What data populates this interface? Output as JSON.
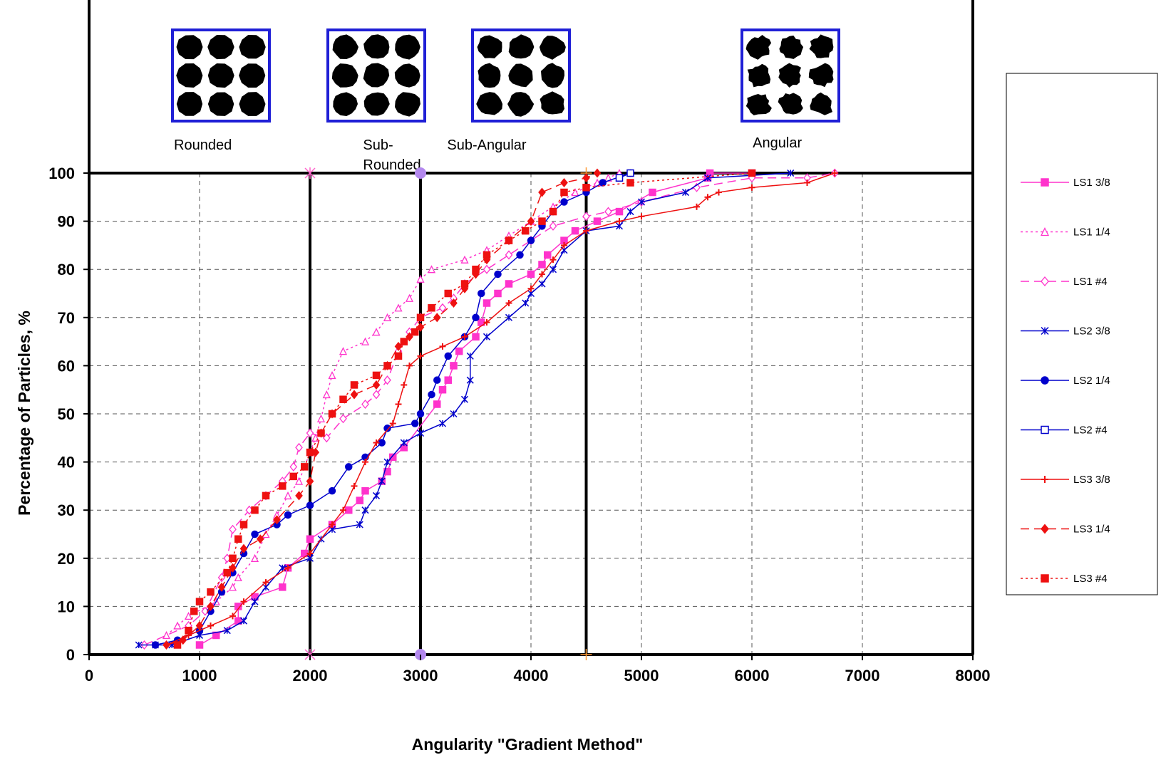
{
  "chart_data": {
    "type": "line",
    "xlabel": "Angularity \"Gradient Method\"",
    "ylabel": "Percentage of Particles, %",
    "xlim": [
      0,
      8000
    ],
    "ylim": [
      0,
      100
    ],
    "x_ticks": [
      "0",
      "1000",
      "2000",
      "3000",
      "4000",
      "5000",
      "6000",
      "7000",
      "8000"
    ],
    "y_ticks": [
      "0",
      "10",
      "20",
      "30",
      "40",
      "50",
      "60",
      "70",
      "80",
      "90",
      "100"
    ],
    "grid": true,
    "legend_position": "right",
    "class_boundaries": [
      2000,
      3000,
      4500
    ],
    "class_labels": [
      {
        "text": "Rounded",
        "x": 1030
      },
      {
        "text": "Sub-\nRounded",
        "x": 2480
      },
      {
        "text": "Sub-Angular",
        "x": 3600
      },
      {
        "text": "Angular",
        "x": 6230
      }
    ],
    "series": [
      {
        "name": "LS1 3/8",
        "color": "#ff33cc",
        "dash": "",
        "marker": "square",
        "markerFill": "#ff33cc",
        "points": [
          [
            1000,
            2
          ],
          [
            1150,
            4
          ],
          [
            1350,
            7
          ],
          [
            1350,
            10
          ],
          [
            1500,
            12
          ],
          [
            1750,
            14
          ],
          [
            1800,
            18
          ],
          [
            1950,
            21
          ],
          [
            2000,
            24
          ],
          [
            2200,
            27
          ],
          [
            2350,
            30
          ],
          [
            2450,
            32
          ],
          [
            2500,
            34
          ],
          [
            2650,
            36
          ],
          [
            2700,
            38
          ],
          [
            2750,
            41
          ],
          [
            2850,
            43
          ],
          [
            3150,
            52
          ],
          [
            3200,
            55
          ],
          [
            3250,
            57
          ],
          [
            3300,
            60
          ],
          [
            3350,
            63
          ],
          [
            3500,
            66
          ],
          [
            3550,
            69
          ],
          [
            3600,
            73
          ],
          [
            3700,
            75
          ],
          [
            3800,
            77
          ],
          [
            4000,
            79
          ],
          [
            4100,
            81
          ],
          [
            4150,
            83
          ],
          [
            4300,
            86
          ],
          [
            4400,
            88
          ],
          [
            4600,
            90
          ],
          [
            4800,
            92
          ],
          [
            5100,
            96
          ],
          [
            5600,
            99
          ],
          [
            5620,
            100
          ],
          [
            6000,
            100
          ]
        ]
      },
      {
        "name": "LS1 1/4",
        "color": "#ff33cc",
        "dash": "3,4",
        "marker": "triangle",
        "markerFill": "#ffffff",
        "points": [
          [
            700,
            4
          ],
          [
            800,
            6
          ],
          [
            900,
            8
          ],
          [
            1150,
            11
          ],
          [
            1300,
            14
          ],
          [
            1350,
            16
          ],
          [
            1500,
            20
          ],
          [
            1600,
            25
          ],
          [
            1700,
            29
          ],
          [
            1800,
            33
          ],
          [
            1900,
            36
          ],
          [
            2000,
            42
          ],
          [
            2050,
            45
          ],
          [
            2100,
            49
          ],
          [
            2150,
            54
          ],
          [
            2200,
            58
          ],
          [
            2300,
            63
          ],
          [
            2500,
            65
          ],
          [
            2600,
            67
          ],
          [
            2700,
            70
          ],
          [
            2800,
            72
          ],
          [
            2900,
            74
          ],
          [
            3000,
            78
          ],
          [
            3100,
            80
          ],
          [
            3400,
            82
          ],
          [
            3600,
            84
          ],
          [
            3800,
            87
          ],
          [
            4000,
            90
          ],
          [
            4200,
            93
          ],
          [
            4400,
            96
          ],
          [
            4600,
            98
          ],
          [
            4700,
            99
          ],
          [
            4800,
            100
          ]
        ]
      },
      {
        "name": "LS1 #4",
        "color": "#ff33cc",
        "dash": "12,7",
        "marker": "diamond",
        "markerFill": "#ffffff",
        "points": [
          [
            500,
            2
          ],
          [
            900,
            6
          ],
          [
            1050,
            9
          ],
          [
            1200,
            16
          ],
          [
            1250,
            20
          ],
          [
            1300,
            26
          ],
          [
            1450,
            30
          ],
          [
            1600,
            33
          ],
          [
            1750,
            36
          ],
          [
            1850,
            39
          ],
          [
            1900,
            43
          ],
          [
            2000,
            46
          ],
          [
            2150,
            45
          ],
          [
            2300,
            49
          ],
          [
            2500,
            52
          ],
          [
            2600,
            54
          ],
          [
            2700,
            57
          ],
          [
            2800,
            63
          ],
          [
            2900,
            67
          ],
          [
            3000,
            70
          ],
          [
            3200,
            72
          ],
          [
            3300,
            74
          ],
          [
            3400,
            77
          ],
          [
            3600,
            80
          ],
          [
            3800,
            83
          ],
          [
            4000,
            86
          ],
          [
            4200,
            89
          ],
          [
            4500,
            91
          ],
          [
            4700,
            92
          ],
          [
            5000,
            94
          ],
          [
            5500,
            97
          ],
          [
            6000,
            99
          ],
          [
            6500,
            99
          ],
          [
            6750,
            100
          ]
        ]
      },
      {
        "name": "LS2 3/8",
        "color": "#0000cc",
        "dash": "",
        "marker": "star",
        "markerFill": "#0000cc",
        "points": [
          [
            450,
            2
          ],
          [
            600,
            2
          ],
          [
            750,
            2
          ],
          [
            1000,
            4
          ],
          [
            1250,
            5
          ],
          [
            1400,
            7
          ],
          [
            1500,
            11
          ],
          [
            1600,
            14
          ],
          [
            1750,
            18
          ],
          [
            2000,
            20
          ],
          [
            2100,
            24
          ],
          [
            2200,
            26
          ],
          [
            2450,
            27
          ],
          [
            2500,
            30
          ],
          [
            2600,
            33
          ],
          [
            2650,
            36
          ],
          [
            2700,
            40
          ],
          [
            2850,
            44
          ],
          [
            3000,
            46
          ],
          [
            3200,
            48
          ],
          [
            3300,
            50
          ],
          [
            3400,
            53
          ],
          [
            3450,
            57
          ],
          [
            3450,
            62
          ],
          [
            3600,
            66
          ],
          [
            3800,
            70
          ],
          [
            3950,
            73
          ],
          [
            4000,
            75
          ],
          [
            4100,
            77
          ],
          [
            4200,
            80
          ],
          [
            4300,
            84
          ],
          [
            4500,
            88
          ],
          [
            4800,
            89
          ],
          [
            4900,
            92
          ],
          [
            5000,
            94
          ],
          [
            5400,
            96
          ],
          [
            5600,
            99
          ],
          [
            6350,
            100
          ]
        ]
      },
      {
        "name": "LS2 1/4",
        "color": "#0000cc",
        "dash": "",
        "marker": "circle",
        "markerFill": "#0000cc",
        "points": [
          [
            600,
            2
          ],
          [
            800,
            3
          ],
          [
            1000,
            5
          ],
          [
            1100,
            9
          ],
          [
            1200,
            13
          ],
          [
            1300,
            17
          ],
          [
            1400,
            21
          ],
          [
            1500,
            25
          ],
          [
            1700,
            27
          ],
          [
            1800,
            29
          ],
          [
            2000,
            31
          ],
          [
            2200,
            34
          ],
          [
            2350,
            39
          ],
          [
            2500,
            41
          ],
          [
            2650,
            44
          ],
          [
            2700,
            47
          ],
          [
            2950,
            48
          ],
          [
            3000,
            50
          ],
          [
            3100,
            54
          ],
          [
            3150,
            57
          ],
          [
            3250,
            62
          ],
          [
            3400,
            66
          ],
          [
            3500,
            70
          ],
          [
            3550,
            75
          ],
          [
            3700,
            79
          ],
          [
            3900,
            83
          ],
          [
            4000,
            86
          ],
          [
            4100,
            89
          ],
          [
            4200,
            92
          ],
          [
            4300,
            94
          ],
          [
            4500,
            96
          ],
          [
            4650,
            98
          ],
          [
            4900,
            100
          ]
        ]
      },
      {
        "name": "LS2 #4",
        "color": "#0000cc",
        "dash": "",
        "marker": "square",
        "markerFill": "#ffffff",
        "points": [
          [
            4800,
            99
          ],
          [
            4900,
            100
          ]
        ]
      },
      {
        "name": "LS3 3/8",
        "color": "#ee1111",
        "dash": "",
        "marker": "plus",
        "markerFill": "#ee1111",
        "points": [
          [
            700,
            2
          ],
          [
            900,
            4
          ],
          [
            1100,
            6
          ],
          [
            1300,
            8
          ],
          [
            1400,
            11
          ],
          [
            1600,
            15
          ],
          [
            1800,
            18
          ],
          [
            2000,
            21
          ],
          [
            2200,
            27
          ],
          [
            2300,
            30
          ],
          [
            2400,
            35
          ],
          [
            2500,
            40
          ],
          [
            2600,
            44
          ],
          [
            2750,
            48
          ],
          [
            2800,
            52
          ],
          [
            2850,
            56
          ],
          [
            2900,
            60
          ],
          [
            3000,
            62
          ],
          [
            3200,
            64
          ],
          [
            3400,
            66
          ],
          [
            3600,
            69
          ],
          [
            3800,
            73
          ],
          [
            4000,
            76
          ],
          [
            4100,
            79
          ],
          [
            4200,
            82
          ],
          [
            4300,
            85
          ],
          [
            4500,
            88
          ],
          [
            4800,
            90
          ],
          [
            5000,
            91
          ],
          [
            5500,
            93
          ],
          [
            5600,
            95
          ],
          [
            5700,
            96
          ],
          [
            6000,
            97
          ],
          [
            6500,
            98
          ],
          [
            6750,
            100
          ]
        ]
      },
      {
        "name": "LS3 1/4",
        "color": "#ee1111",
        "dash": "12,7",
        "marker": "diamond",
        "markerFill": "#ee1111",
        "points": [
          [
            700,
            2
          ],
          [
            850,
            3
          ],
          [
            1000,
            6
          ],
          [
            1100,
            10
          ],
          [
            1200,
            14
          ],
          [
            1300,
            18
          ],
          [
            1400,
            22
          ],
          [
            1550,
            24
          ],
          [
            1700,
            28
          ],
          [
            1900,
            33
          ],
          [
            2000,
            36
          ],
          [
            2050,
            42
          ],
          [
            2100,
            46
          ],
          [
            2200,
            50
          ],
          [
            2400,
            54
          ],
          [
            2600,
            56
          ],
          [
            2700,
            60
          ],
          [
            2800,
            64
          ],
          [
            2900,
            66
          ],
          [
            3000,
            68
          ],
          [
            3150,
            70
          ],
          [
            3300,
            73
          ],
          [
            3400,
            76
          ],
          [
            3500,
            79
          ],
          [
            3600,
            82
          ],
          [
            3800,
            86
          ],
          [
            4000,
            90
          ],
          [
            4100,
            96
          ],
          [
            4300,
            98
          ],
          [
            4500,
            99
          ],
          [
            4600,
            100
          ]
        ]
      },
      {
        "name": "LS3 #4",
        "color": "#ee1111",
        "dash": "3,4",
        "marker": "square",
        "markerFill": "#ee1111",
        "points": [
          [
            800,
            2
          ],
          [
            900,
            5
          ],
          [
            950,
            9
          ],
          [
            1000,
            11
          ],
          [
            1100,
            13
          ],
          [
            1250,
            17
          ],
          [
            1300,
            20
          ],
          [
            1350,
            24
          ],
          [
            1400,
            27
          ],
          [
            1500,
            30
          ],
          [
            1600,
            33
          ],
          [
            1750,
            35
          ],
          [
            1850,
            37
          ],
          [
            1950,
            39
          ],
          [
            2000,
            42
          ],
          [
            2100,
            46
          ],
          [
            2200,
            50
          ],
          [
            2300,
            53
          ],
          [
            2400,
            56
          ],
          [
            2600,
            58
          ],
          [
            2700,
            60
          ],
          [
            2800,
            62
          ],
          [
            2850,
            65
          ],
          [
            2950,
            67
          ],
          [
            3000,
            70
          ],
          [
            3100,
            72
          ],
          [
            3250,
            75
          ],
          [
            3400,
            77
          ],
          [
            3500,
            80
          ],
          [
            3600,
            83
          ],
          [
            3800,
            86
          ],
          [
            3950,
            88
          ],
          [
            4100,
            90
          ],
          [
            4200,
            92
          ],
          [
            4300,
            96
          ],
          [
            4500,
            97
          ],
          [
            4900,
            98
          ],
          [
            6000,
            100
          ]
        ]
      }
    ]
  }
}
